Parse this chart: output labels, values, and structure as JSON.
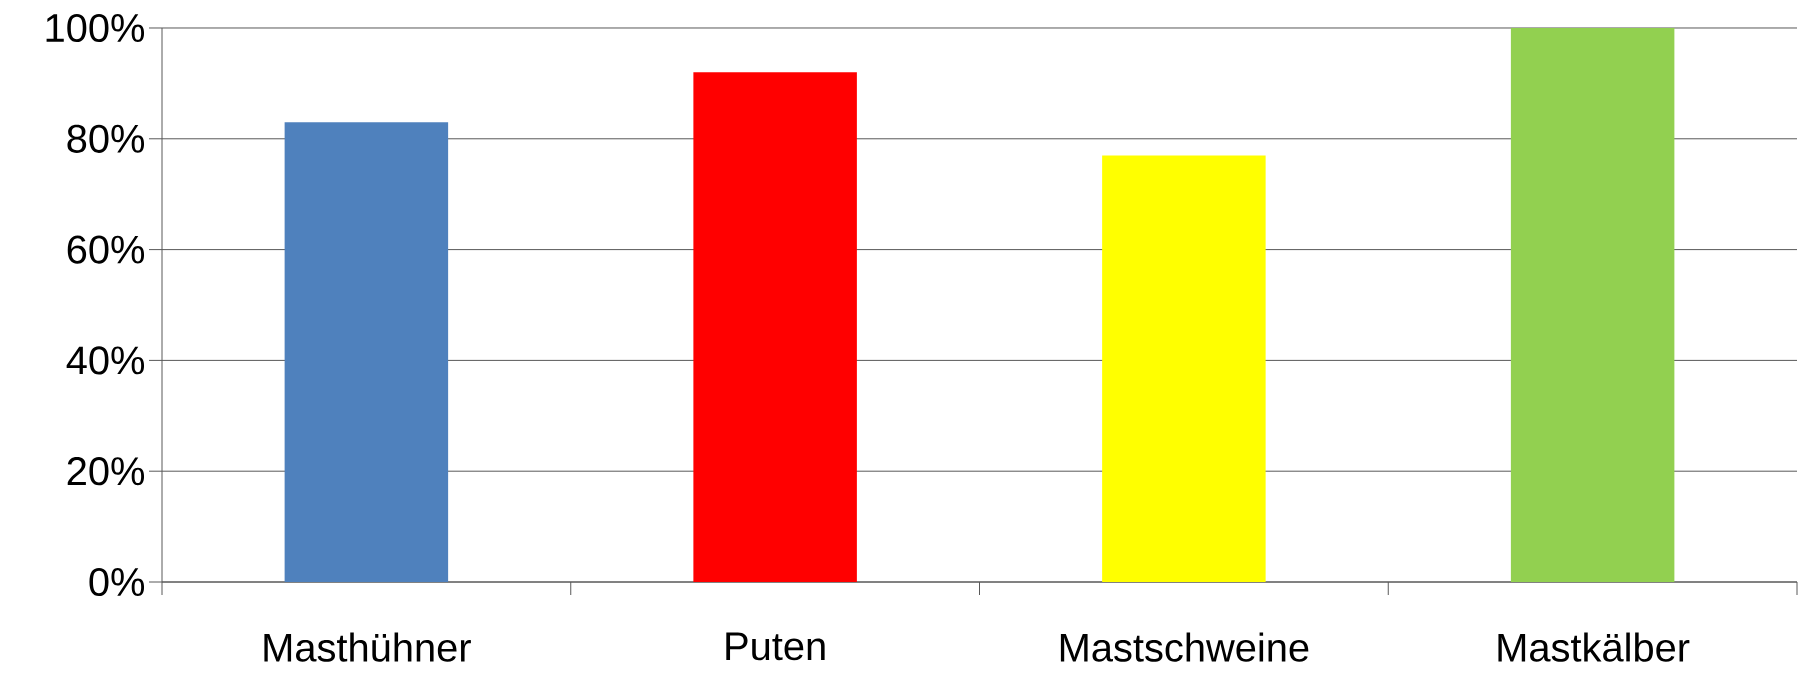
{
  "chart_data": {
    "type": "bar",
    "categories": [
      "Masthühner",
      "Puten",
      "Mastschweine",
      "Mastkälber"
    ],
    "values": [
      83,
      92,
      77,
      100
    ],
    "colors": [
      "#4f81bd",
      "#ff0000",
      "#ffff00",
      "#92d050"
    ],
    "ylim": [
      0,
      100
    ],
    "yticks": [
      {
        "value": 0,
        "label": "0%"
      },
      {
        "value": 20,
        "label": "20%"
      },
      {
        "value": 40,
        "label": "40%"
      },
      {
        "value": 60,
        "label": "60%"
      },
      {
        "value": 80,
        "label": "80%"
      },
      {
        "value": 100,
        "label": "100%"
      }
    ],
    "grid": "y"
  }
}
